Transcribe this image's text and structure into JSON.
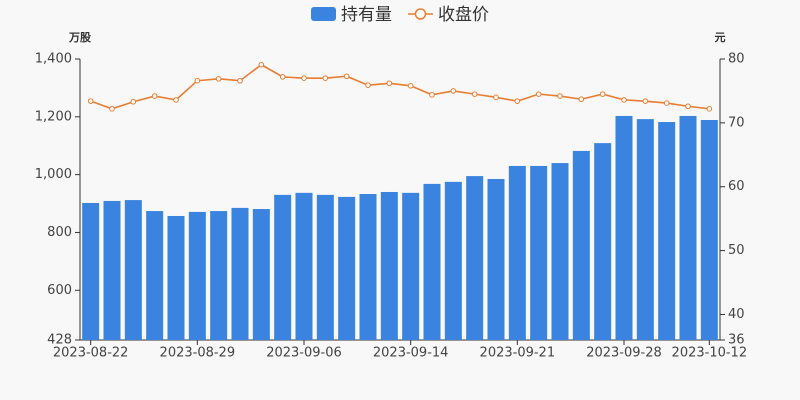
{
  "chart_data": {
    "type": "bar_line",
    "y_label": "万股",
    "y2_label": "元",
    "categories": [
      "2023-08-22",
      null,
      null,
      null,
      null,
      "2023-08-29",
      null,
      null,
      null,
      null,
      "2023-09-06",
      null,
      null,
      null,
      null,
      "2023-09-14",
      null,
      null,
      null,
      null,
      "2023-09-21",
      null,
      null,
      null,
      null,
      "2023-09-28",
      null,
      null,
      null,
      "2023-10-12"
    ],
    "series": [
      {
        "name": "持有量",
        "color": "#3a84e0",
        "kind": "bar",
        "axis": "y",
        "values": [
          902,
          909,
          912,
          874,
          857,
          871,
          874,
          885,
          881,
          930,
          937,
          930,
          923,
          933,
          940,
          937,
          968,
          975,
          995,
          985,
          1030,
          1030,
          1040,
          1082,
          1109,
          1203,
          1192,
          1182,
          1203,
          1189
        ]
      },
      {
        "name": "收盘价",
        "color": "#e97c31",
        "kind": "line",
        "axis": "y2",
        "values": [
          73.4,
          72.2,
          73.3,
          74.2,
          73.6,
          76.6,
          76.9,
          76.6,
          79.1,
          77.2,
          77.0,
          77.0,
          77.3,
          75.9,
          76.2,
          75.8,
          74.4,
          75.0,
          74.5,
          74.0,
          73.4,
          74.5,
          74.2,
          73.7,
          74.5,
          73.6,
          73.4,
          73.1,
          72.6,
          72.2
        ]
      }
    ],
    "ylim": [
      428,
      1400
    ],
    "yticks": [
      428,
      600,
      800,
      {
        "value": 1000,
        "label": "1,000"
      },
      {
        "value": 1200,
        "label": "1,200"
      },
      {
        "value": 1400,
        "label": "1,400"
      }
    ],
    "y2lim": [
      36,
      80
    ],
    "y2ticks": [
      36,
      40,
      50,
      60,
      70,
      80
    ],
    "legend": "top"
  }
}
